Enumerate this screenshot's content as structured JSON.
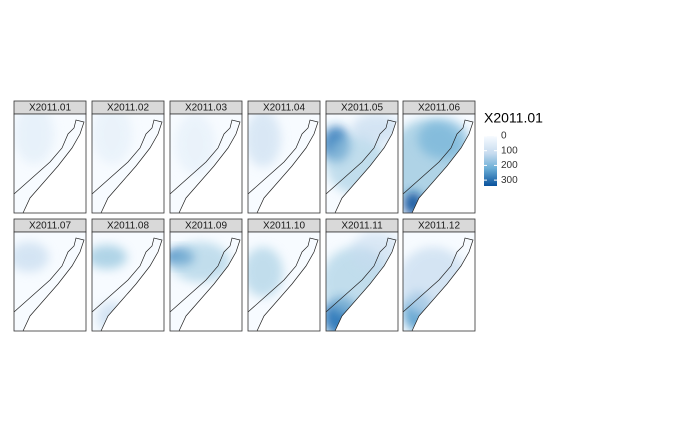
{
  "panels": [
    {
      "label": "X2011.01"
    },
    {
      "label": "X2011.02"
    },
    {
      "label": "X2011.03"
    },
    {
      "label": "X2011.04"
    },
    {
      "label": "X2011.05"
    },
    {
      "label": "X2011.06"
    },
    {
      "label": "X2011.07"
    },
    {
      "label": "X2011.08"
    },
    {
      "label": "X2011.09"
    },
    {
      "label": "X2011.10"
    },
    {
      "label": "X2011.11"
    },
    {
      "label": "X2011.12"
    }
  ],
  "legend": {
    "title": "X2011.01",
    "lim": [
      0,
      340
    ],
    "ticks": [
      0,
      100,
      200,
      300
    ]
  }
}
